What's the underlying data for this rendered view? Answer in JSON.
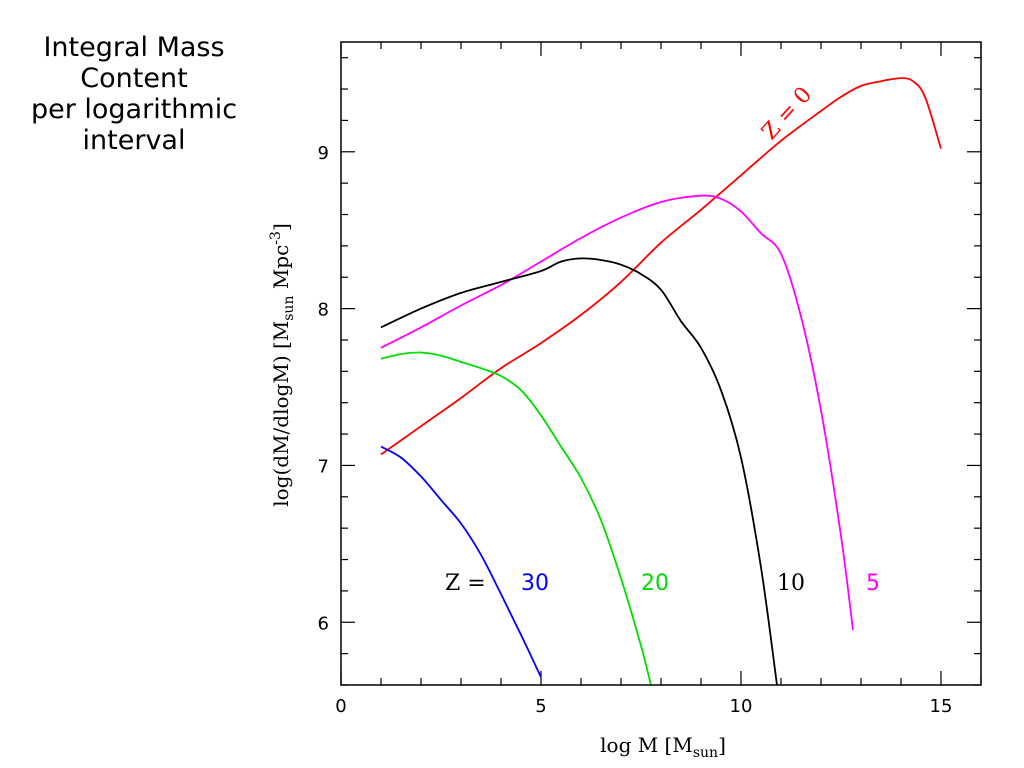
{
  "caption": {
    "lines": [
      "Integral Mass",
      "Content",
      "per logarithmic",
      "interval"
    ]
  },
  "chart_data": {
    "type": "line",
    "xlabel": "log  M    [M",
    "xlabel_sub": "sun",
    "xlabel_close": "]",
    "ylabel": "log(dM/dlogM)  [M",
    "ylabel_sub": "sun",
    "ylabel_mid": "  Mpc",
    "ylabel_sup": "-3",
    "ylabel_close": "]",
    "xlim": [
      0,
      16
    ],
    "ylim": [
      5.6,
      9.7
    ],
    "xticks": [
      0,
      5,
      10,
      15
    ],
    "xtick_labels": [
      "0",
      "5",
      "10",
      "15"
    ],
    "yticks": [
      6,
      7,
      8,
      9
    ],
    "ytick_labels": [
      "6",
      "7",
      "8",
      "9"
    ],
    "grid": false,
    "series": [
      {
        "name": "Z = 0",
        "color": "#ff0000",
        "x": [
          1.0,
          2.0,
          3.0,
          4.0,
          5.0,
          6.0,
          7.0,
          8.0,
          9.0,
          10.0,
          11.0,
          12.0,
          12.5,
          13.0,
          13.5,
          14.0,
          14.3,
          14.6,
          15.0
        ],
        "y": [
          7.07,
          7.25,
          7.43,
          7.62,
          7.78,
          7.96,
          8.17,
          8.42,
          8.63,
          8.85,
          9.07,
          9.26,
          9.35,
          9.42,
          9.45,
          9.47,
          9.45,
          9.35,
          9.02
        ]
      },
      {
        "name": "5",
        "color": "#ff00ff",
        "x": [
          1.0,
          2.0,
          3.0,
          4.0,
          5.0,
          6.0,
          7.0,
          8.0,
          9.0,
          9.5,
          10.0,
          10.5,
          11.0,
          11.5,
          12.0,
          12.5,
          12.8
        ],
        "y": [
          7.75,
          7.88,
          8.02,
          8.15,
          8.3,
          8.45,
          8.58,
          8.68,
          8.72,
          8.7,
          8.62,
          8.48,
          8.35,
          7.95,
          7.35,
          6.55,
          5.95
        ]
      },
      {
        "name": "10",
        "color": "#000000",
        "x": [
          1.0,
          2.0,
          3.0,
          4.0,
          5.0,
          5.5,
          6.0,
          6.5,
          7.0,
          7.5,
          8.0,
          8.5,
          9.0,
          9.5,
          10.0,
          10.5,
          10.9
        ],
        "y": [
          7.88,
          8.0,
          8.1,
          8.17,
          8.24,
          8.3,
          8.32,
          8.31,
          8.28,
          8.22,
          8.12,
          7.92,
          7.75,
          7.48,
          7.05,
          6.35,
          5.6
        ]
      },
      {
        "name": "20",
        "color": "#00dd00",
        "x": [
          1.0,
          1.5,
          2.0,
          2.5,
          3.0,
          3.5,
          4.0,
          4.5,
          5.0,
          5.5,
          6.0,
          6.5,
          7.0,
          7.5,
          7.75
        ],
        "y": [
          7.68,
          7.71,
          7.72,
          7.7,
          7.66,
          7.62,
          7.57,
          7.48,
          7.32,
          7.12,
          6.92,
          6.65,
          6.28,
          5.85,
          5.6
        ]
      },
      {
        "name": "30",
        "color": "#0000ff",
        "x": [
          1.0,
          1.5,
          2.0,
          2.5,
          3.0,
          3.5,
          4.0,
          4.5,
          5.0
        ],
        "y": [
          7.12,
          7.05,
          6.93,
          6.78,
          6.63,
          6.43,
          6.18,
          5.92,
          5.65
        ]
      }
    ],
    "annotations": {
      "z0": {
        "text": "Z = 0",
        "color": "#ff0000"
      },
      "z_prefix": {
        "text": "Z  =",
        "color": "#000000"
      },
      "labels": [
        {
          "text": "30",
          "color": "#0000ff"
        },
        {
          "text": "20",
          "color": "#00dd00"
        },
        {
          "text": "10",
          "color": "#000000"
        },
        {
          "text": "5",
          "color": "#ff00ff"
        }
      ]
    }
  }
}
